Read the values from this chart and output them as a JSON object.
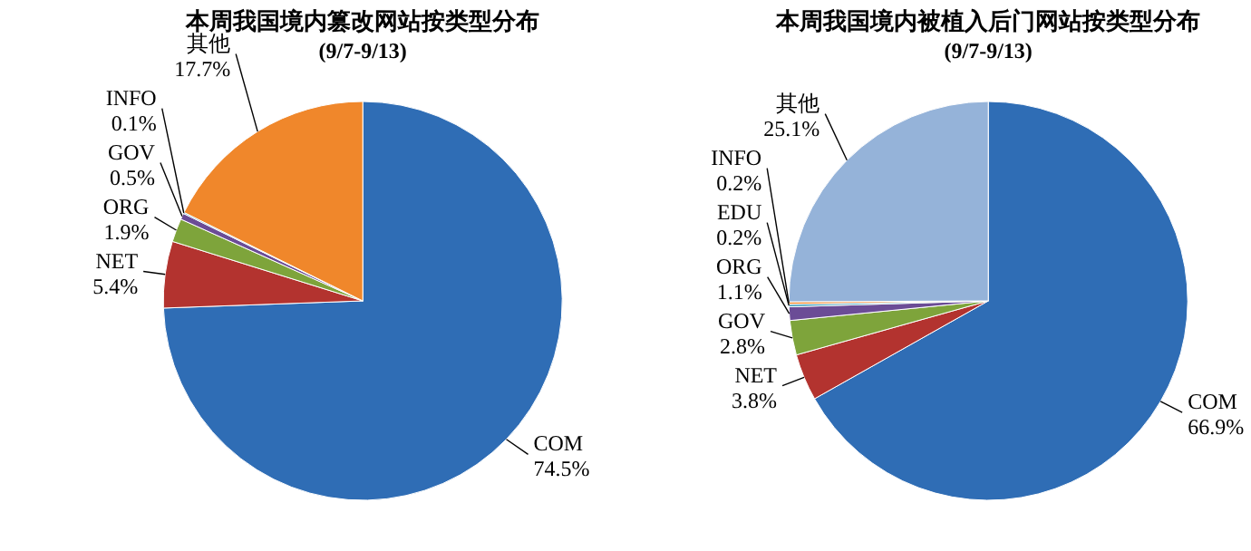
{
  "chart_data": [
    {
      "type": "pie",
      "title": "本周我国境内篡改网站按类型分布",
      "subtitle": "(9/7-9/13)",
      "categories": [
        "COM",
        "NET",
        "ORG",
        "GOV",
        "INFO",
        "其他"
      ],
      "values": [
        74.5,
        5.4,
        1.9,
        0.5,
        0.1,
        17.7
      ],
      "value_labels": [
        "74.5%",
        "5.4%",
        "1.9%",
        "0.5%",
        "0.1%",
        "17.7%"
      ],
      "colors": [
        "#2f6db5",
        "#b3332f",
        "#7ea43b",
        "#6b4c96",
        "#3b9bb8",
        "#f0872b"
      ]
    },
    {
      "type": "pie",
      "title": "本周我国境内被植入后门网站按类型分布",
      "subtitle": "(9/7-9/13)",
      "categories": [
        "COM",
        "NET",
        "GOV",
        "ORG",
        "EDU",
        "INFO",
        "其他"
      ],
      "values": [
        66.9,
        3.8,
        2.8,
        1.1,
        0.2,
        0.2,
        25.1
      ],
      "value_labels": [
        "66.9%",
        "3.8%",
        "2.8%",
        "1.1%",
        "0.2%",
        "0.2%",
        "25.1%"
      ],
      "colors": [
        "#2f6db5",
        "#b3332f",
        "#7ea43b",
        "#6b4c96",
        "#3b9bb8",
        "#f0872b",
        "#95b3d9"
      ]
    }
  ]
}
